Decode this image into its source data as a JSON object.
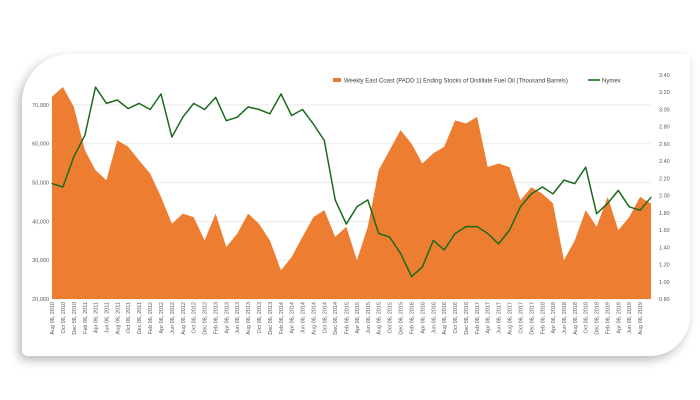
{
  "chart_data": {
    "type": "area+line",
    "title": "",
    "colors": {
      "stocks": "#ED7D31",
      "nymex": "#1B6B1B",
      "grid": "#E6E6E6"
    },
    "legend_placement": "top-right",
    "grid": true,
    "x_tick_labels": [
      "Aug 06, 2010",
      "Oct 06, 2010",
      "Dec 06, 2010",
      "Feb 06, 2011",
      "Apr 06, 2011",
      "Jun 06, 2011",
      "Aug 06, 2011",
      "Oct 06, 2011",
      "Dec 06, 2011",
      "Feb 06, 2012",
      "Apr 06, 2012",
      "Jun 06, 2012",
      "Aug 06, 2012",
      "Oct 06, 2012",
      "Dec 06, 2012",
      "Feb 06, 2013",
      "Apr 06, 2013",
      "Jun 06, 2013",
      "Aug 06, 2013",
      "Oct 06, 2013",
      "Dec 06, 2013",
      "Feb 06, 2014",
      "Apr 06, 2014",
      "Jun 06, 2014",
      "Aug 06, 2014",
      "Oct 06, 2014",
      "Dec 06, 2014",
      "Feb 06, 2015",
      "Apr 06, 2015",
      "Jun 06, 2015",
      "Aug 06, 2015",
      "Oct 06, 2015",
      "Dec 06, 2015",
      "Feb 06, 2016",
      "Apr 06, 2016",
      "Jun 06, 2016",
      "Aug 06, 2016",
      "Oct 06, 2016",
      "Dec 06, 2016",
      "Feb 06, 2017",
      "Apr 06, 2017",
      "Jun 06, 2017",
      "Aug 06, 2017",
      "Oct 06, 2017",
      "Dec 06, 2017",
      "Feb 06, 2018",
      "Apr 06, 2018",
      "Jun 06, 2018",
      "Aug 06, 2018",
      "Oct 06, 2018",
      "Dec 06, 2018",
      "Feb 06, 2019",
      "Apr 06, 2019",
      "Jun 06, 2019",
      "Aug 06, 2019"
    ],
    "x": [
      "2010-08-06",
      "2010-10-06",
      "2010-12-06",
      "2011-02-06",
      "2011-04-06",
      "2011-06-06",
      "2011-08-06",
      "2011-10-06",
      "2011-12-06",
      "2012-02-06",
      "2012-04-06",
      "2012-06-06",
      "2012-08-06",
      "2012-10-06",
      "2012-12-06",
      "2013-02-06",
      "2013-04-06",
      "2013-06-06",
      "2013-08-06",
      "2013-10-06",
      "2013-12-06",
      "2014-02-06",
      "2014-04-06",
      "2014-06-06",
      "2014-08-06",
      "2014-10-06",
      "2014-12-06",
      "2015-02-06",
      "2015-04-06",
      "2015-06-06",
      "2015-08-06",
      "2015-10-06",
      "2015-12-06",
      "2016-02-06",
      "2016-04-06",
      "2016-06-06",
      "2016-08-06",
      "2016-10-06",
      "2016-12-06",
      "2017-02-06",
      "2017-04-06",
      "2017-06-06",
      "2017-08-06",
      "2017-10-06",
      "2017-12-06",
      "2018-02-06",
      "2018-04-06",
      "2018-06-06",
      "2018-08-06",
      "2018-10-06",
      "2018-12-06",
      "2019-02-06",
      "2019-04-06",
      "2019-06-06",
      "2019-08-06",
      "2019-10-06"
    ],
    "y_left": {
      "ticks": [
        "20,000",
        "30,000",
        "40,000",
        "50,000",
        "60,000",
        "70,000"
      ],
      "ylim": [
        20000,
        77700
      ]
    },
    "y_right": {
      "ticks": [
        "0.80",
        "1.00",
        "1.20",
        "1.40",
        "1.60",
        "1.80",
        "2.00",
        "2.20",
        "2.40",
        "2.60",
        "2.80",
        "3.00",
        "3.20",
        "3.40"
      ],
      "ylim": [
        0.8,
        3.4
      ]
    },
    "series": [
      {
        "name": "Weekly East Coast (PADD 1) Ending Stocks of Distillate Fuel Oil  (Thousand Barrels)",
        "type": "area",
        "axis": "left",
        "values": [
          72100,
          74600,
          69500,
          58300,
          53200,
          50600,
          60900,
          59200,
          55700,
          52300,
          46300,
          39400,
          42000,
          41100,
          35100,
          42000,
          33400,
          36800,
          42000,
          39400,
          35100,
          27400,
          30800,
          36000,
          41100,
          42900,
          36000,
          38600,
          30000,
          38600,
          53200,
          58300,
          63500,
          60000,
          54900,
          57500,
          59200,
          66000,
          65200,
          66900,
          54000,
          54900,
          54000,
          45400,
          48800,
          47100,
          44600,
          30000,
          35100,
          42900,
          38600,
          46300,
          37700,
          41100,
          46300,
          44600
        ]
      },
      {
        "name": "Nymex",
        "type": "line",
        "axis": "right",
        "values": [
          2.14,
          2.1,
          2.45,
          2.7,
          3.26,
          3.07,
          3.11,
          3.01,
          3.07,
          3.0,
          3.18,
          2.68,
          2.91,
          3.07,
          3.0,
          3.14,
          2.87,
          2.91,
          3.03,
          3.0,
          2.95,
          3.18,
          2.93,
          3.0,
          2.83,
          2.64,
          1.95,
          1.67,
          1.87,
          1.95,
          1.56,
          1.52,
          1.33,
          1.06,
          1.17,
          1.48,
          1.37,
          1.56,
          1.64,
          1.64,
          1.56,
          1.44,
          1.6,
          1.87,
          2.02,
          2.1,
          2.02,
          2.18,
          2.14,
          2.33,
          1.79,
          1.91,
          2.06,
          1.87,
          1.83,
          1.98
        ]
      }
    ]
  }
}
